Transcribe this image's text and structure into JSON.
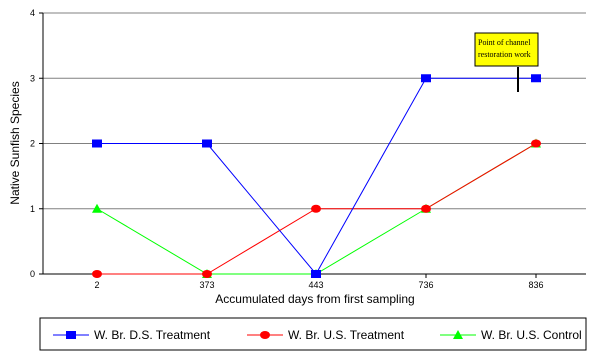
{
  "chart_data": {
    "type": "line",
    "xlabel": "Accumulated days from first sampling",
    "ylabel": "Native Sunfish Species",
    "categories": [
      "2",
      "373",
      "443",
      "736",
      "836"
    ],
    "ylim": [
      0,
      4
    ],
    "yticks": [
      "0",
      "1",
      "2",
      "3",
      "4"
    ],
    "grid": true,
    "legend_position": "bottom",
    "series": [
      {
        "name": "W. Br. D.S. Treatment",
        "values": [
          2,
          2,
          0,
          3,
          3
        ],
        "color": "#0000ff",
        "marker": "square"
      },
      {
        "name": "W. Br. U.S. Treatment",
        "values": [
          0,
          0,
          1,
          1,
          2
        ],
        "color": "#ff0000",
        "marker": "circle"
      },
      {
        "name": "W. Br. U.S. Control",
        "values": [
          1,
          0,
          0,
          1,
          2
        ],
        "color": "#00ff00",
        "marker": "triangle"
      }
    ],
    "annotation": {
      "lines": [
        "Point of channel",
        "restoration work"
      ],
      "between_categories": [
        "736",
        "836"
      ],
      "box_color": "#ffff00"
    }
  }
}
